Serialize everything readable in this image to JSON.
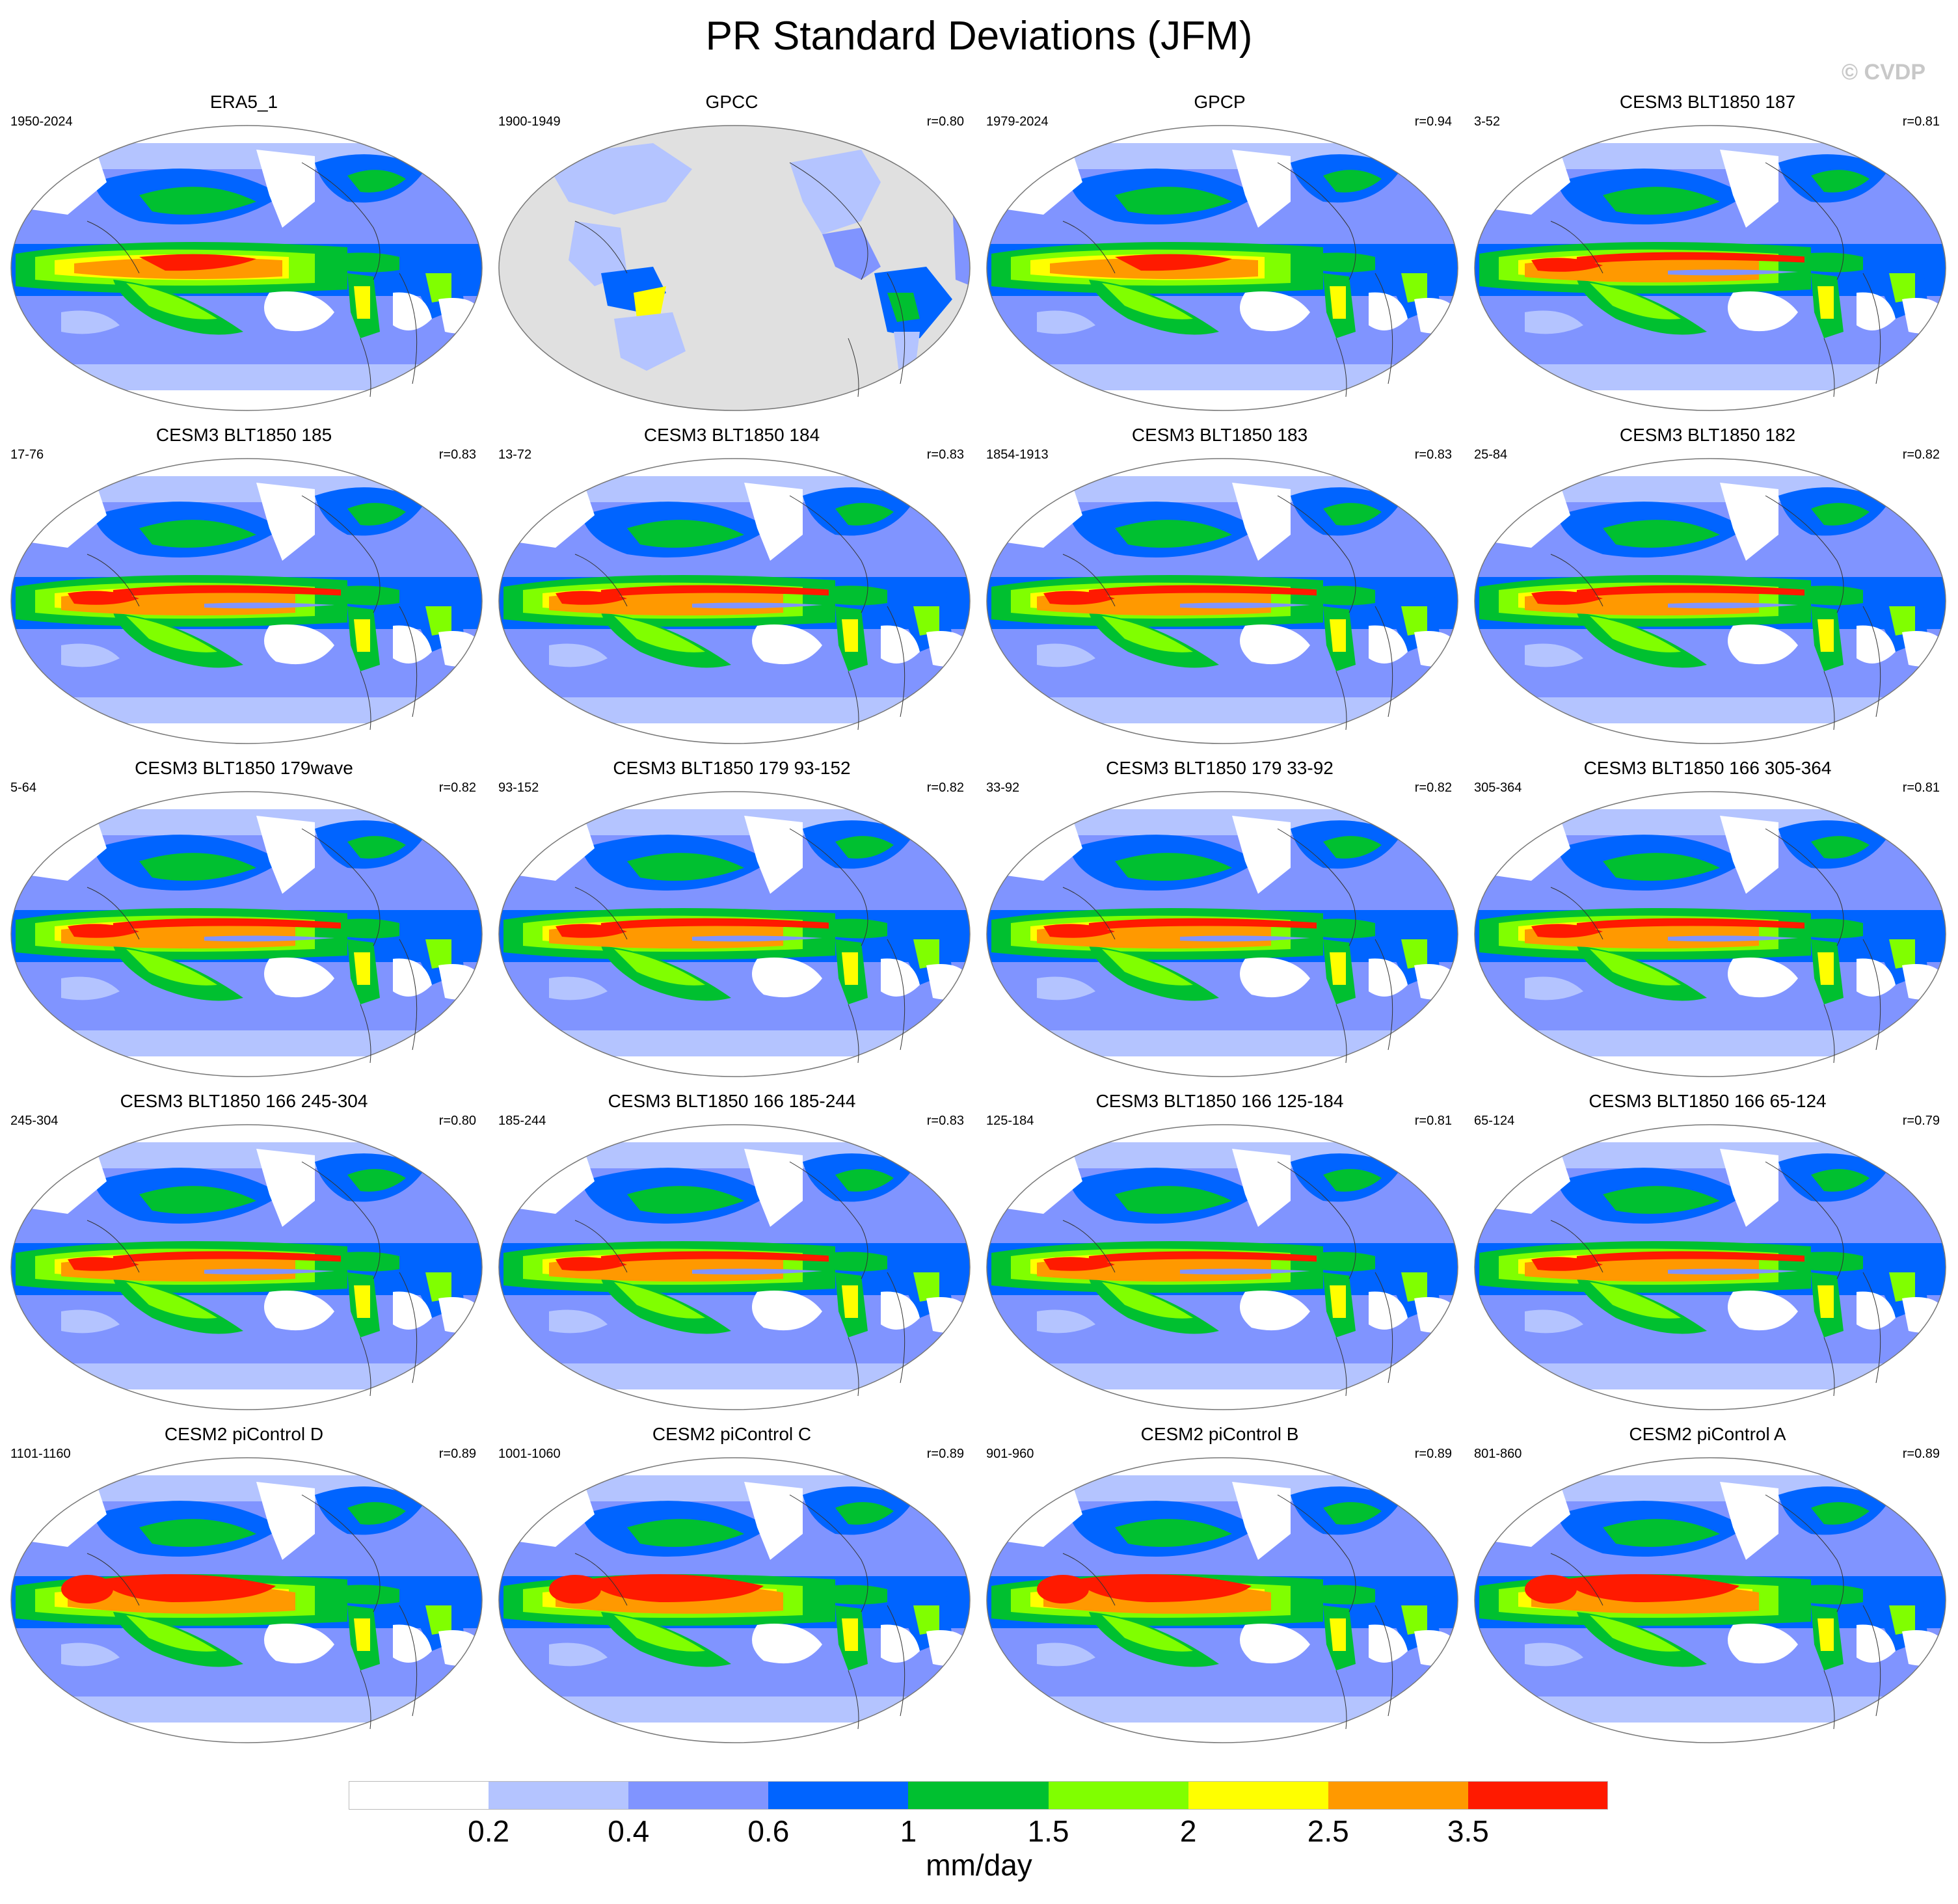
{
  "title": "PR Standard Deviations (JFM)",
  "watermark": "© CVDP",
  "colorbar": {
    "units": "mm/day",
    "colors": [
      "#ffffff",
      "#b4c4ff",
      "#8094ff",
      "#0064ff",
      "#00c030",
      "#80ff00",
      "#ffff00",
      "#ff9900",
      "#ff1a00"
    ],
    "tick_labels": [
      "0.2",
      "0.4",
      "0.6",
      "1",
      "1.5",
      "2",
      "2.5",
      "3.5"
    ]
  },
  "panels": [
    {
      "title": "ERA5_1",
      "years": "1950-2024",
      "r": "",
      "style": "obs"
    },
    {
      "title": "GPCC",
      "years": "1900-1949",
      "r": "r=0.80",
      "style": "land"
    },
    {
      "title": "GPCP",
      "years": "1979-2024",
      "r": "r=0.94",
      "style": "obs"
    },
    {
      "title": "CESM3 BLT1850 187",
      "years": "3-52",
      "r": "r=0.81",
      "style": "cesm3"
    },
    {
      "title": "CESM3 BLT1850 185",
      "years": "17-76",
      "r": "r=0.83",
      "style": "cesm3"
    },
    {
      "title": "CESM3 BLT1850 184",
      "years": "13-72",
      "r": "r=0.83",
      "style": "cesm3"
    },
    {
      "title": "CESM3 BLT1850 183",
      "years": "1854-1913",
      "r": "r=0.83",
      "style": "cesm3"
    },
    {
      "title": "CESM3 BLT1850 182",
      "years": "25-84",
      "r": "r=0.82",
      "style": "cesm3"
    },
    {
      "title": "CESM3 BLT1850 179wave",
      "years": "5-64",
      "r": "r=0.82",
      "style": "cesm3"
    },
    {
      "title": "CESM3 BLT1850 179 93-152",
      "years": "93-152",
      "r": "r=0.82",
      "style": "cesm3"
    },
    {
      "title": "CESM3 BLT1850 179 33-92",
      "years": "33-92",
      "r": "r=0.82",
      "style": "cesm3"
    },
    {
      "title": "CESM3 BLT1850 166 305-364",
      "years": "305-364",
      "r": "r=0.81",
      "style": "cesm3"
    },
    {
      "title": "CESM3 BLT1850 166 245-304",
      "years": "245-304",
      "r": "r=0.80",
      "style": "cesm3"
    },
    {
      "title": "CESM3 BLT1850 166 185-244",
      "years": "185-244",
      "r": "r=0.83",
      "style": "cesm3"
    },
    {
      "title": "CESM3 BLT1850 166 125-184",
      "years": "125-184",
      "r": "r=0.81",
      "style": "cesm3"
    },
    {
      "title": "CESM3 BLT1850 166 65-124",
      "years": "65-124",
      "r": "r=0.79",
      "style": "cesm3"
    },
    {
      "title": "CESM2 piControl D",
      "years": "1101-1160",
      "r": "r=0.89",
      "style": "cesm2"
    },
    {
      "title": "CESM2 piControl C",
      "years": "1001-1060",
      "r": "r=0.89",
      "style": "cesm2"
    },
    {
      "title": "CESM2 piControl B",
      "years": "901-960",
      "r": "r=0.89",
      "style": "cesm2"
    },
    {
      "title": "CESM2 piControl A",
      "years": "801-860",
      "r": "r=0.89",
      "style": "cesm2"
    }
  ]
}
